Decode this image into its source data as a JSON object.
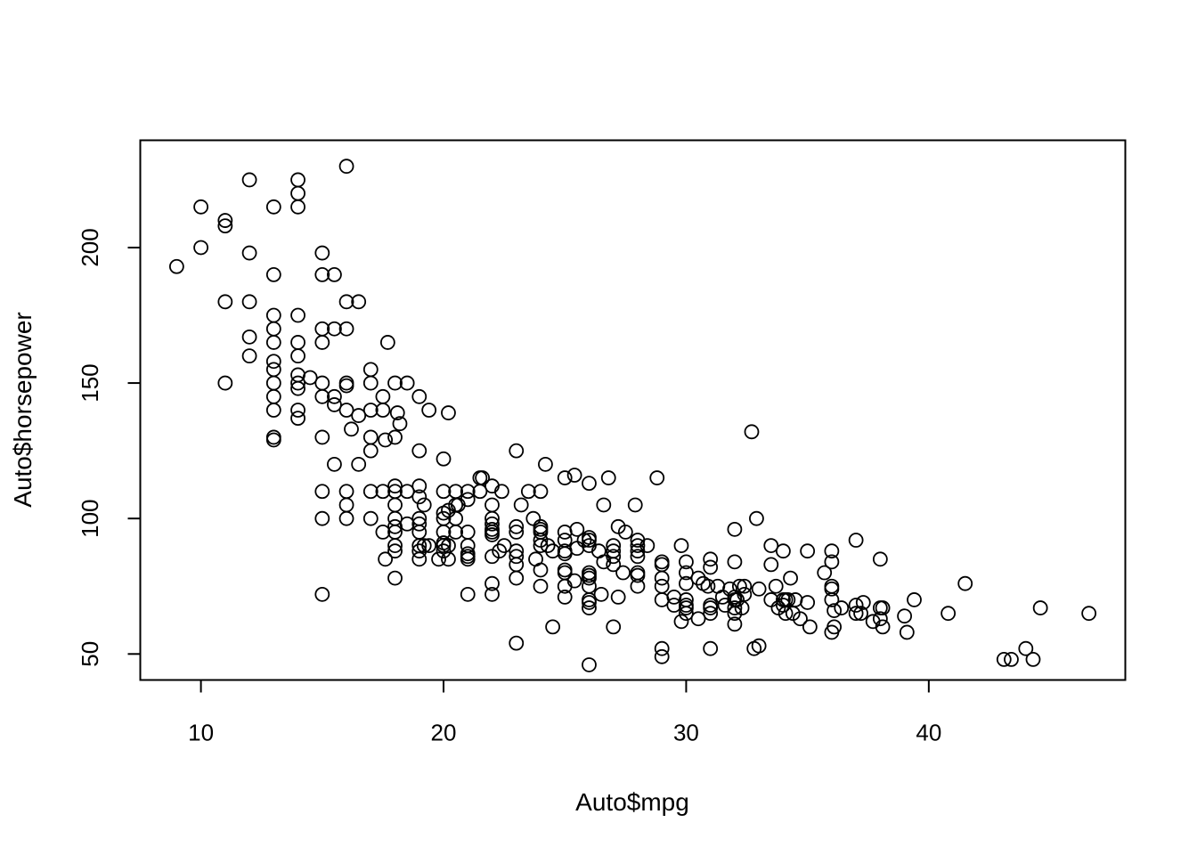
{
  "chart_data": {
    "type": "scatter",
    "title": "",
    "xlabel": "Auto$mpg",
    "ylabel": "Auto$horsepower",
    "xlim": [
      7.5,
      48.1
    ],
    "ylim": [
      40.4,
      239.6
    ],
    "x_ticks": [
      10,
      20,
      30,
      40
    ],
    "y_ticks": [
      50,
      100,
      150,
      200
    ],
    "x_tick_labels": [
      "10",
      "20",
      "30",
      "40"
    ],
    "y_tick_labels": [
      "50",
      "100",
      "150",
      "200"
    ],
    "grid": false,
    "legend": "none",
    "marker": "open-circle",
    "color": "#000000",
    "points": [
      [
        9,
        193
      ],
      [
        10,
        215
      ],
      [
        10,
        200
      ],
      [
        11,
        210
      ],
      [
        11,
        208
      ],
      [
        11,
        180
      ],
      [
        11,
        150
      ],
      [
        12,
        225
      ],
      [
        12,
        198
      ],
      [
        12,
        180
      ],
      [
        12,
        167
      ],
      [
        12,
        160
      ],
      [
        13,
        215
      ],
      [
        13,
        190
      ],
      [
        13,
        175
      ],
      [
        13,
        170
      ],
      [
        13,
        165
      ],
      [
        13,
        158
      ],
      [
        13,
        155
      ],
      [
        13,
        150
      ],
      [
        13,
        145
      ],
      [
        13,
        140
      ],
      [
        13,
        130
      ],
      [
        13,
        129
      ],
      [
        14,
        225
      ],
      [
        14,
        220
      ],
      [
        14,
        215
      ],
      [
        14,
        175
      ],
      [
        14,
        165
      ],
      [
        14,
        160
      ],
      [
        14,
        153
      ],
      [
        14,
        150
      ],
      [
        14,
        148
      ],
      [
        14,
        140
      ],
      [
        14,
        137
      ],
      [
        14.5,
        152
      ],
      [
        15,
        198
      ],
      [
        15,
        190
      ],
      [
        15,
        170
      ],
      [
        15,
        165
      ],
      [
        15,
        150
      ],
      [
        15,
        145
      ],
      [
        15,
        130
      ],
      [
        15,
        110
      ],
      [
        15,
        100
      ],
      [
        15,
        72
      ],
      [
        15.5,
        190
      ],
      [
        15.5,
        170
      ],
      [
        15.5,
        145
      ],
      [
        15.5,
        142
      ],
      [
        15.5,
        120
      ],
      [
        16,
        230
      ],
      [
        16,
        180
      ],
      [
        16,
        170
      ],
      [
        16,
        150
      ],
      [
        16,
        149
      ],
      [
        16,
        140
      ],
      [
        16,
        110
      ],
      [
        16,
        105
      ],
      [
        16,
        100
      ],
      [
        16.2,
        133
      ],
      [
        16.5,
        180
      ],
      [
        16.5,
        138
      ],
      [
        16.5,
        120
      ],
      [
        17,
        155
      ],
      [
        17,
        150
      ],
      [
        17,
        140
      ],
      [
        17,
        130
      ],
      [
        17,
        125
      ],
      [
        17,
        110
      ],
      [
        17,
        100
      ],
      [
        17.5,
        145
      ],
      [
        17.5,
        140
      ],
      [
        17.5,
        110
      ],
      [
        17.5,
        95
      ],
      [
        17.6,
        129
      ],
      [
        17.6,
        85
      ],
      [
        17.7,
        165
      ],
      [
        18,
        150
      ],
      [
        18,
        130
      ],
      [
        18,
        112
      ],
      [
        18,
        110
      ],
      [
        18,
        105
      ],
      [
        18,
        100
      ],
      [
        18,
        97
      ],
      [
        18,
        95
      ],
      [
        18,
        90
      ],
      [
        18,
        88
      ],
      [
        18,
        78
      ],
      [
        18.1,
        139
      ],
      [
        18.2,
        135
      ],
      [
        18.5,
        150
      ],
      [
        18.5,
        110
      ],
      [
        18.5,
        98
      ],
      [
        19,
        145
      ],
      [
        19,
        125
      ],
      [
        19,
        112
      ],
      [
        19,
        108
      ],
      [
        19,
        100
      ],
      [
        19,
        98
      ],
      [
        19,
        95
      ],
      [
        19,
        90
      ],
      [
        19,
        88
      ],
      [
        19,
        85
      ],
      [
        19.2,
        105
      ],
      [
        19.2,
        90
      ],
      [
        19.4,
        140
      ],
      [
        19.4,
        90
      ],
      [
        19.8,
        85
      ],
      [
        20,
        122
      ],
      [
        20,
        110
      ],
      [
        20,
        102
      ],
      [
        20,
        100
      ],
      [
        20,
        95
      ],
      [
        20,
        91
      ],
      [
        20,
        90
      ],
      [
        20,
        88
      ],
      [
        20.2,
        139
      ],
      [
        20.2,
        103
      ],
      [
        20.2,
        90
      ],
      [
        20.2,
        85
      ],
      [
        20.5,
        110
      ],
      [
        20.5,
        105
      ],
      [
        20.5,
        100
      ],
      [
        20.5,
        95
      ],
      [
        20.6,
        105
      ],
      [
        21,
        110
      ],
      [
        21,
        107
      ],
      [
        21,
        95
      ],
      [
        21,
        90
      ],
      [
        21,
        87
      ],
      [
        21,
        86
      ],
      [
        21,
        85
      ],
      [
        21,
        72
      ],
      [
        21.5,
        115
      ],
      [
        21.5,
        110
      ],
      [
        21.6,
        115
      ],
      [
        22,
        112
      ],
      [
        22,
        105
      ],
      [
        22,
        100
      ],
      [
        22,
        98
      ],
      [
        22,
        96
      ],
      [
        22,
        95
      ],
      [
        22,
        94
      ],
      [
        22,
        86
      ],
      [
        22,
        76
      ],
      [
        22,
        72
      ],
      [
        22.3,
        88
      ],
      [
        22.4,
        110
      ],
      [
        22.5,
        90
      ],
      [
        23,
        125
      ],
      [
        23,
        97
      ],
      [
        23,
        95
      ],
      [
        23,
        88
      ],
      [
        23,
        86
      ],
      [
        23,
        83
      ],
      [
        23,
        78
      ],
      [
        23,
        54
      ],
      [
        23.2,
        105
      ],
      [
        23.5,
        110
      ],
      [
        23.7,
        100
      ],
      [
        23.8,
        85
      ],
      [
        24,
        110
      ],
      [
        24,
        97
      ],
      [
        24,
        96
      ],
      [
        24,
        95
      ],
      [
        24,
        92
      ],
      [
        24,
        90
      ],
      [
        24,
        81
      ],
      [
        24,
        75
      ],
      [
        24.2,
        120
      ],
      [
        24.3,
        90
      ],
      [
        24.5,
        88
      ],
      [
        24.5,
        60
      ],
      [
        25,
        115
      ],
      [
        25,
        95
      ],
      [
        25,
        92
      ],
      [
        25,
        88
      ],
      [
        25,
        87
      ],
      [
        25,
        81
      ],
      [
        25,
        80
      ],
      [
        25,
        75
      ],
      [
        25,
        71
      ],
      [
        25.4,
        116
      ],
      [
        25.4,
        77
      ],
      [
        25.5,
        96
      ],
      [
        25.5,
        89
      ],
      [
        25.8,
        92
      ],
      [
        26,
        113
      ],
      [
        26,
        93
      ],
      [
        26,
        92
      ],
      [
        26,
        90
      ],
      [
        26,
        80
      ],
      [
        26,
        79
      ],
      [
        26,
        78
      ],
      [
        26,
        75
      ],
      [
        26,
        70
      ],
      [
        26,
        69
      ],
      [
        26,
        67
      ],
      [
        26,
        46
      ],
      [
        26.4,
        88
      ],
      [
        26.5,
        72
      ],
      [
        26.6,
        105
      ],
      [
        26.6,
        84
      ],
      [
        26.8,
        115
      ],
      [
        27,
        90
      ],
      [
        27,
        88
      ],
      [
        27,
        86
      ],
      [
        27,
        83
      ],
      [
        27,
        60
      ],
      [
        27.2,
        97
      ],
      [
        27.2,
        71
      ],
      [
        27.4,
        80
      ],
      [
        27.5,
        95
      ],
      [
        27.9,
        105
      ],
      [
        28,
        92
      ],
      [
        28,
        90
      ],
      [
        28,
        88
      ],
      [
        28,
        86
      ],
      [
        28,
        80
      ],
      [
        28,
        79
      ],
      [
        28,
        75
      ],
      [
        28.4,
        90
      ],
      [
        28.8,
        115
      ],
      [
        29,
        84
      ],
      [
        29,
        83
      ],
      [
        29,
        78
      ],
      [
        29,
        75
      ],
      [
        29,
        70
      ],
      [
        29,
        52
      ],
      [
        29,
        49
      ],
      [
        29.5,
        71
      ],
      [
        29.5,
        68
      ],
      [
        29.8,
        90
      ],
      [
        29.8,
        62
      ],
      [
        30,
        84
      ],
      [
        30,
        80
      ],
      [
        30,
        76
      ],
      [
        30,
        70
      ],
      [
        30,
        68
      ],
      [
        30,
        67
      ],
      [
        30,
        65
      ],
      [
        30.5,
        63
      ],
      [
        30.5,
        78
      ],
      [
        30.7,
        76
      ],
      [
        30.9,
        75
      ],
      [
        31,
        85
      ],
      [
        31,
        82
      ],
      [
        31,
        68
      ],
      [
        31,
        67
      ],
      [
        31,
        65
      ],
      [
        31,
        52
      ],
      [
        31.3,
        75
      ],
      [
        31.5,
        71
      ],
      [
        31.6,
        68
      ],
      [
        31.8,
        74
      ],
      [
        32,
        96
      ],
      [
        32,
        84
      ],
      [
        32,
        71
      ],
      [
        32,
        70
      ],
      [
        32,
        67
      ],
      [
        32,
        65
      ],
      [
        32,
        61
      ],
      [
        32.1,
        70
      ],
      [
        32.2,
        75
      ],
      [
        32.3,
        67
      ],
      [
        32.4,
        75
      ],
      [
        32.4,
        72
      ],
      [
        32.7,
        132
      ],
      [
        32.8,
        52
      ],
      [
        32.9,
        100
      ],
      [
        33,
        53
      ],
      [
        33,
        74
      ],
      [
        33.5,
        83
      ],
      [
        33.5,
        70
      ],
      [
        33.7,
        75
      ],
      [
        33.5,
        90
      ],
      [
        33.8,
        67
      ],
      [
        34,
        88
      ],
      [
        34,
        70
      ],
      [
        34,
        68
      ],
      [
        34.1,
        70
      ],
      [
        34.1,
        65
      ],
      [
        34.2,
        70
      ],
      [
        34.3,
        78
      ],
      [
        34.4,
        65
      ],
      [
        34.5,
        70
      ],
      [
        34.7,
        63
      ],
      [
        35,
        88
      ],
      [
        35,
        69
      ],
      [
        35.1,
        60
      ],
      [
        35.7,
        80
      ],
      [
        36,
        88
      ],
      [
        36,
        84
      ],
      [
        36,
        75
      ],
      [
        36,
        74
      ],
      [
        36,
        70
      ],
      [
        36,
        58
      ],
      [
        36.1,
        66
      ],
      [
        36.1,
        60
      ],
      [
        36.4,
        67
      ],
      [
        37,
        92
      ],
      [
        37,
        68
      ],
      [
        37,
        65
      ],
      [
        37.2,
        65
      ],
      [
        37.3,
        69
      ],
      [
        37.7,
        62
      ],
      [
        38,
        85
      ],
      [
        38,
        67
      ],
      [
        38,
        63
      ],
      [
        38.1,
        67
      ],
      [
        38.1,
        60
      ],
      [
        39,
        64
      ],
      [
        39.1,
        58
      ],
      [
        39.4,
        70
      ],
      [
        40.8,
        65
      ],
      [
        41.5,
        76
      ],
      [
        43.1,
        48
      ],
      [
        43.4,
        48
      ],
      [
        44,
        52
      ],
      [
        44.3,
        48
      ],
      [
        44.6,
        67
      ],
      [
        46.6,
        65
      ]
    ]
  }
}
